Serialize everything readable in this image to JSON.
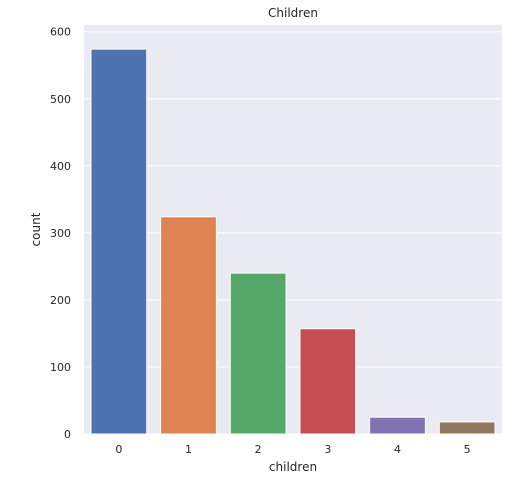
{
  "chart_data": {
    "type": "bar",
    "title": "Children",
    "xlabel": "children",
    "ylabel": "count",
    "categories": [
      "0",
      "1",
      "2",
      "3",
      "4",
      "5"
    ],
    "values": [
      574,
      324,
      240,
      157,
      25,
      18
    ],
    "ylim": [
      0,
      610
    ],
    "yticks": [
      0,
      100,
      200,
      300,
      400,
      500,
      600
    ],
    "grid": true,
    "colors": [
      "#4c72b0",
      "#dd8452",
      "#55a868",
      "#c44e52",
      "#8172b3",
      "#937860"
    ],
    "background": "#eaeaf2"
  }
}
